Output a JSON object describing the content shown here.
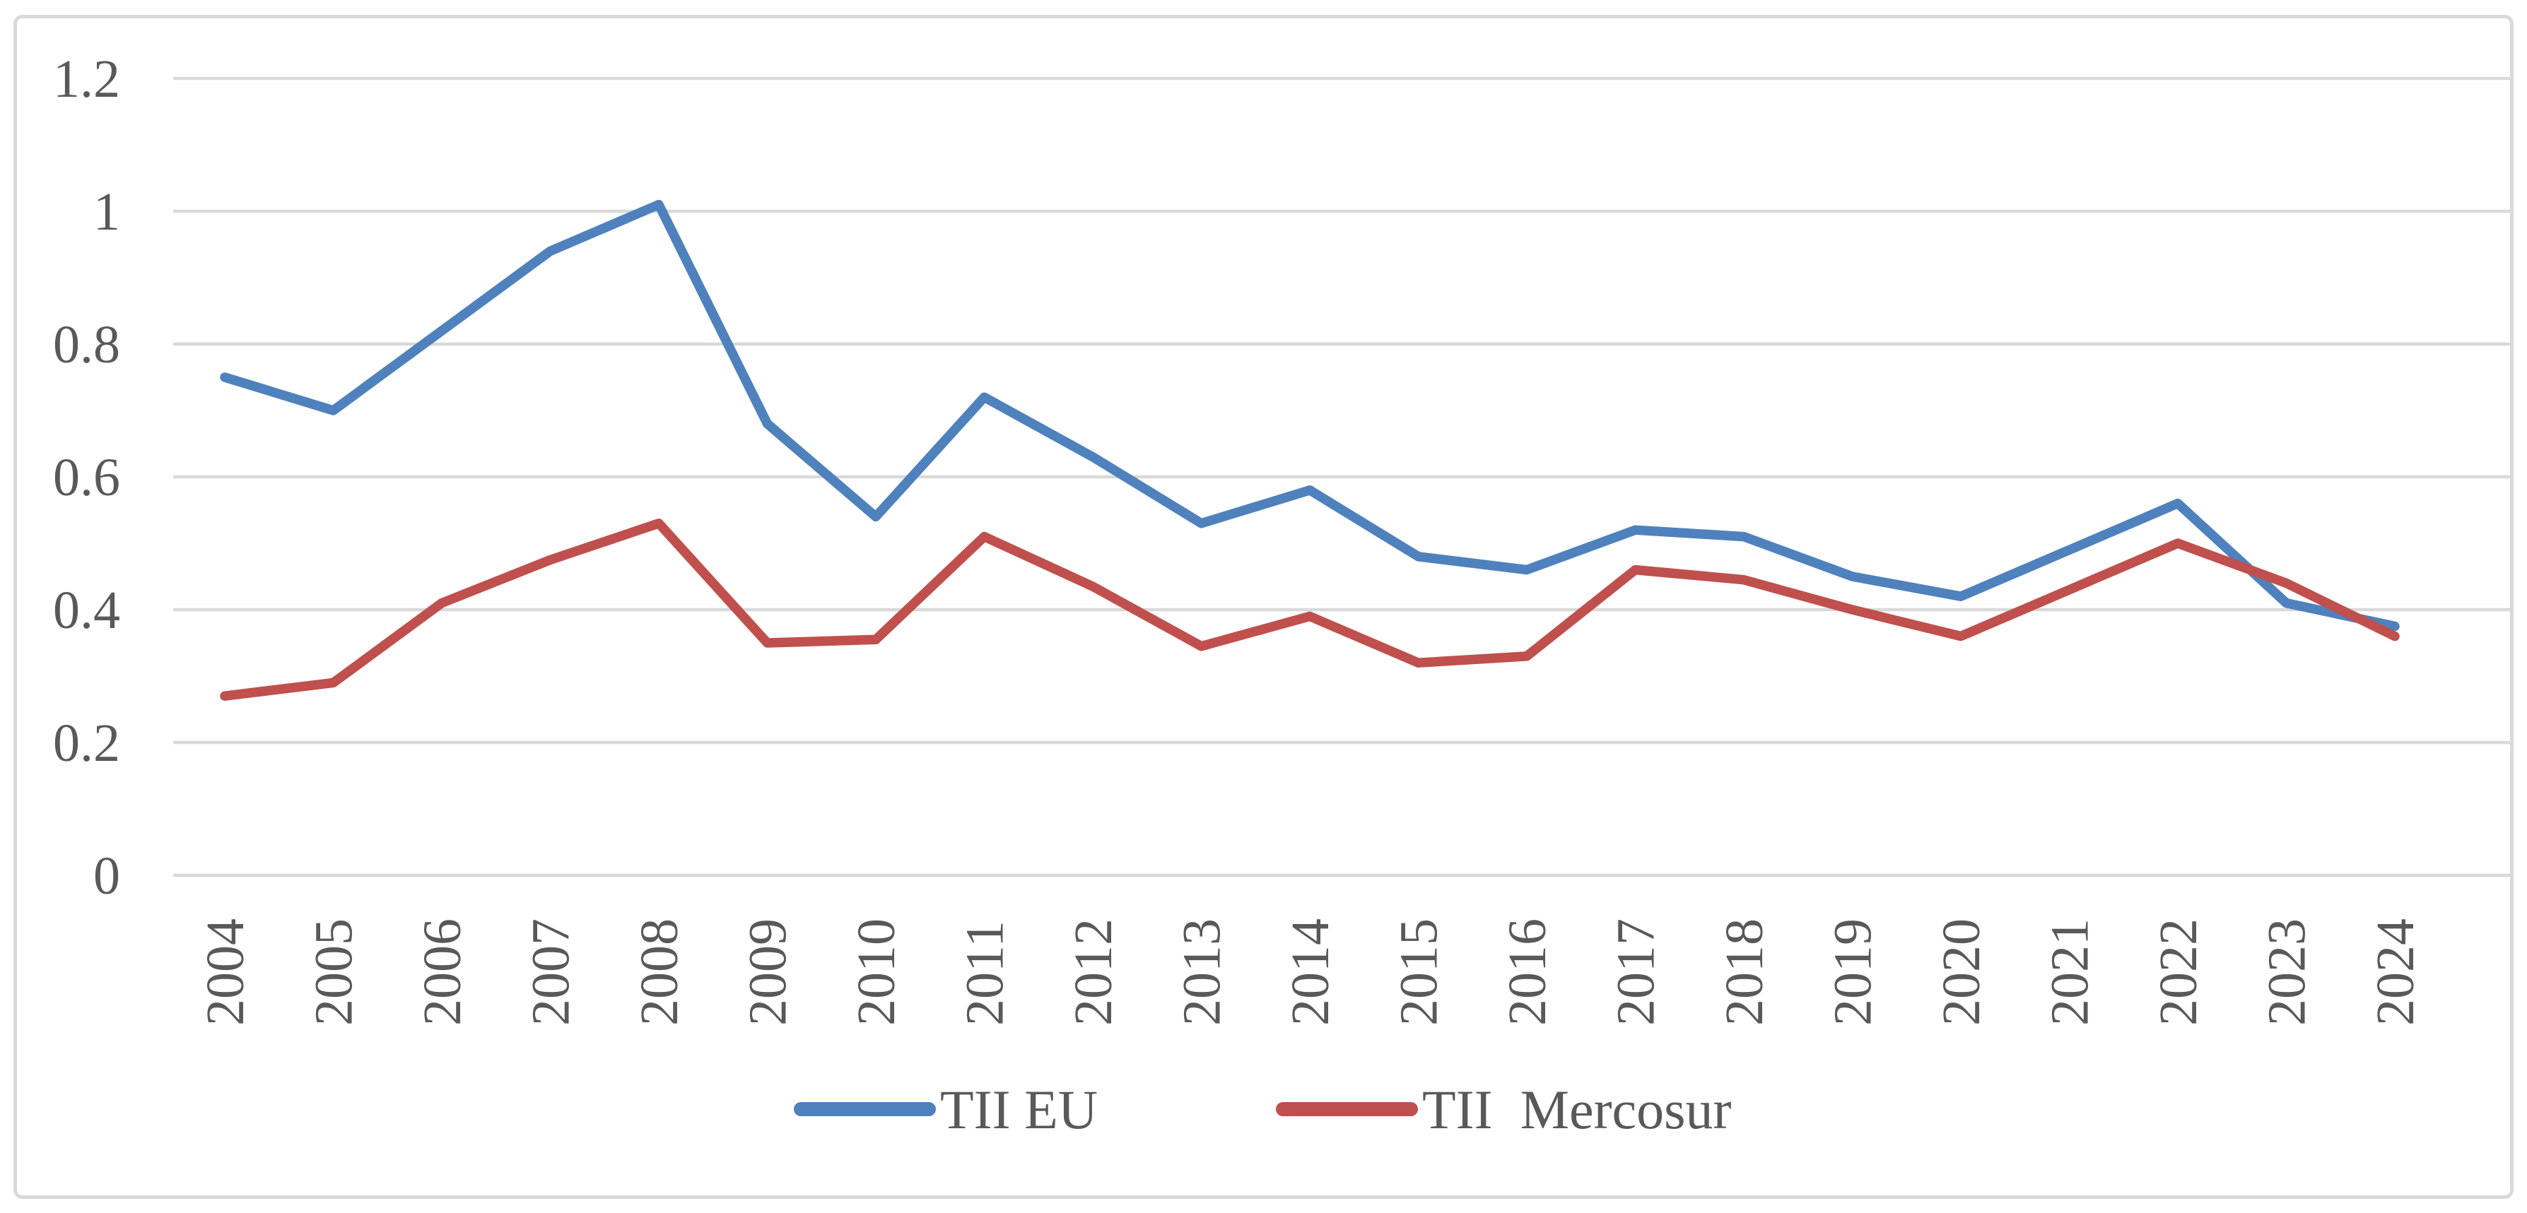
{
  "chart_data": {
    "type": "line",
    "title": "",
    "xlabel": "",
    "ylabel": "",
    "categories": [
      "2004",
      "2005",
      "2006",
      "2007",
      "2008",
      "2009",
      "2010",
      "2011",
      "2012",
      "2013",
      "2014",
      "2015",
      "2016",
      "2017",
      "2018",
      "2019",
      "2020",
      "2021",
      "2022",
      "2023",
      "2024"
    ],
    "series": [
      {
        "name": "TII EU",
        "color": "#4F81BD",
        "values": [
          0.75,
          0.7,
          0.82,
          0.94,
          1.01,
          0.68,
          0.54,
          0.72,
          0.63,
          0.53,
          0.58,
          0.48,
          0.46,
          0.52,
          0.51,
          0.45,
          0.42,
          0.49,
          0.56,
          0.41,
          0.375
        ]
      },
      {
        "name": "TII  Mercosur",
        "color": "#C0504D",
        "values": [
          0.27,
          0.29,
          0.41,
          0.475,
          0.53,
          0.35,
          0.355,
          0.51,
          0.435,
          0.345,
          0.39,
          0.32,
          0.33,
          0.46,
          0.445,
          0.4,
          0.36,
          0.43,
          0.5,
          0.44,
          0.36
        ]
      }
    ],
    "ylim": [
      0,
      1.2
    ],
    "yticks": [
      {
        "value": 1.2,
        "label": "1.2"
      },
      {
        "value": 1.0,
        "label": "1"
      },
      {
        "value": 0.8,
        "label": "0.8"
      },
      {
        "value": 0.6,
        "label": "0.6"
      },
      {
        "value": 0.4,
        "label": "0.4"
      },
      {
        "value": 0.2,
        "label": "0.2"
      },
      {
        "value": 0.0,
        "label": "0"
      }
    ],
    "grid": true,
    "legend_position": "bottom"
  },
  "legend": {
    "items": [
      {
        "label": "TII EU",
        "color": "#4F81BD"
      },
      {
        "label": "TII  Mercosur",
        "color": "#C0504D"
      }
    ]
  },
  "colors": {
    "gridline": "#D9D9D9",
    "border": "#D9D9D9",
    "tick_label": "#595959",
    "background": "#FFFFFF"
  }
}
